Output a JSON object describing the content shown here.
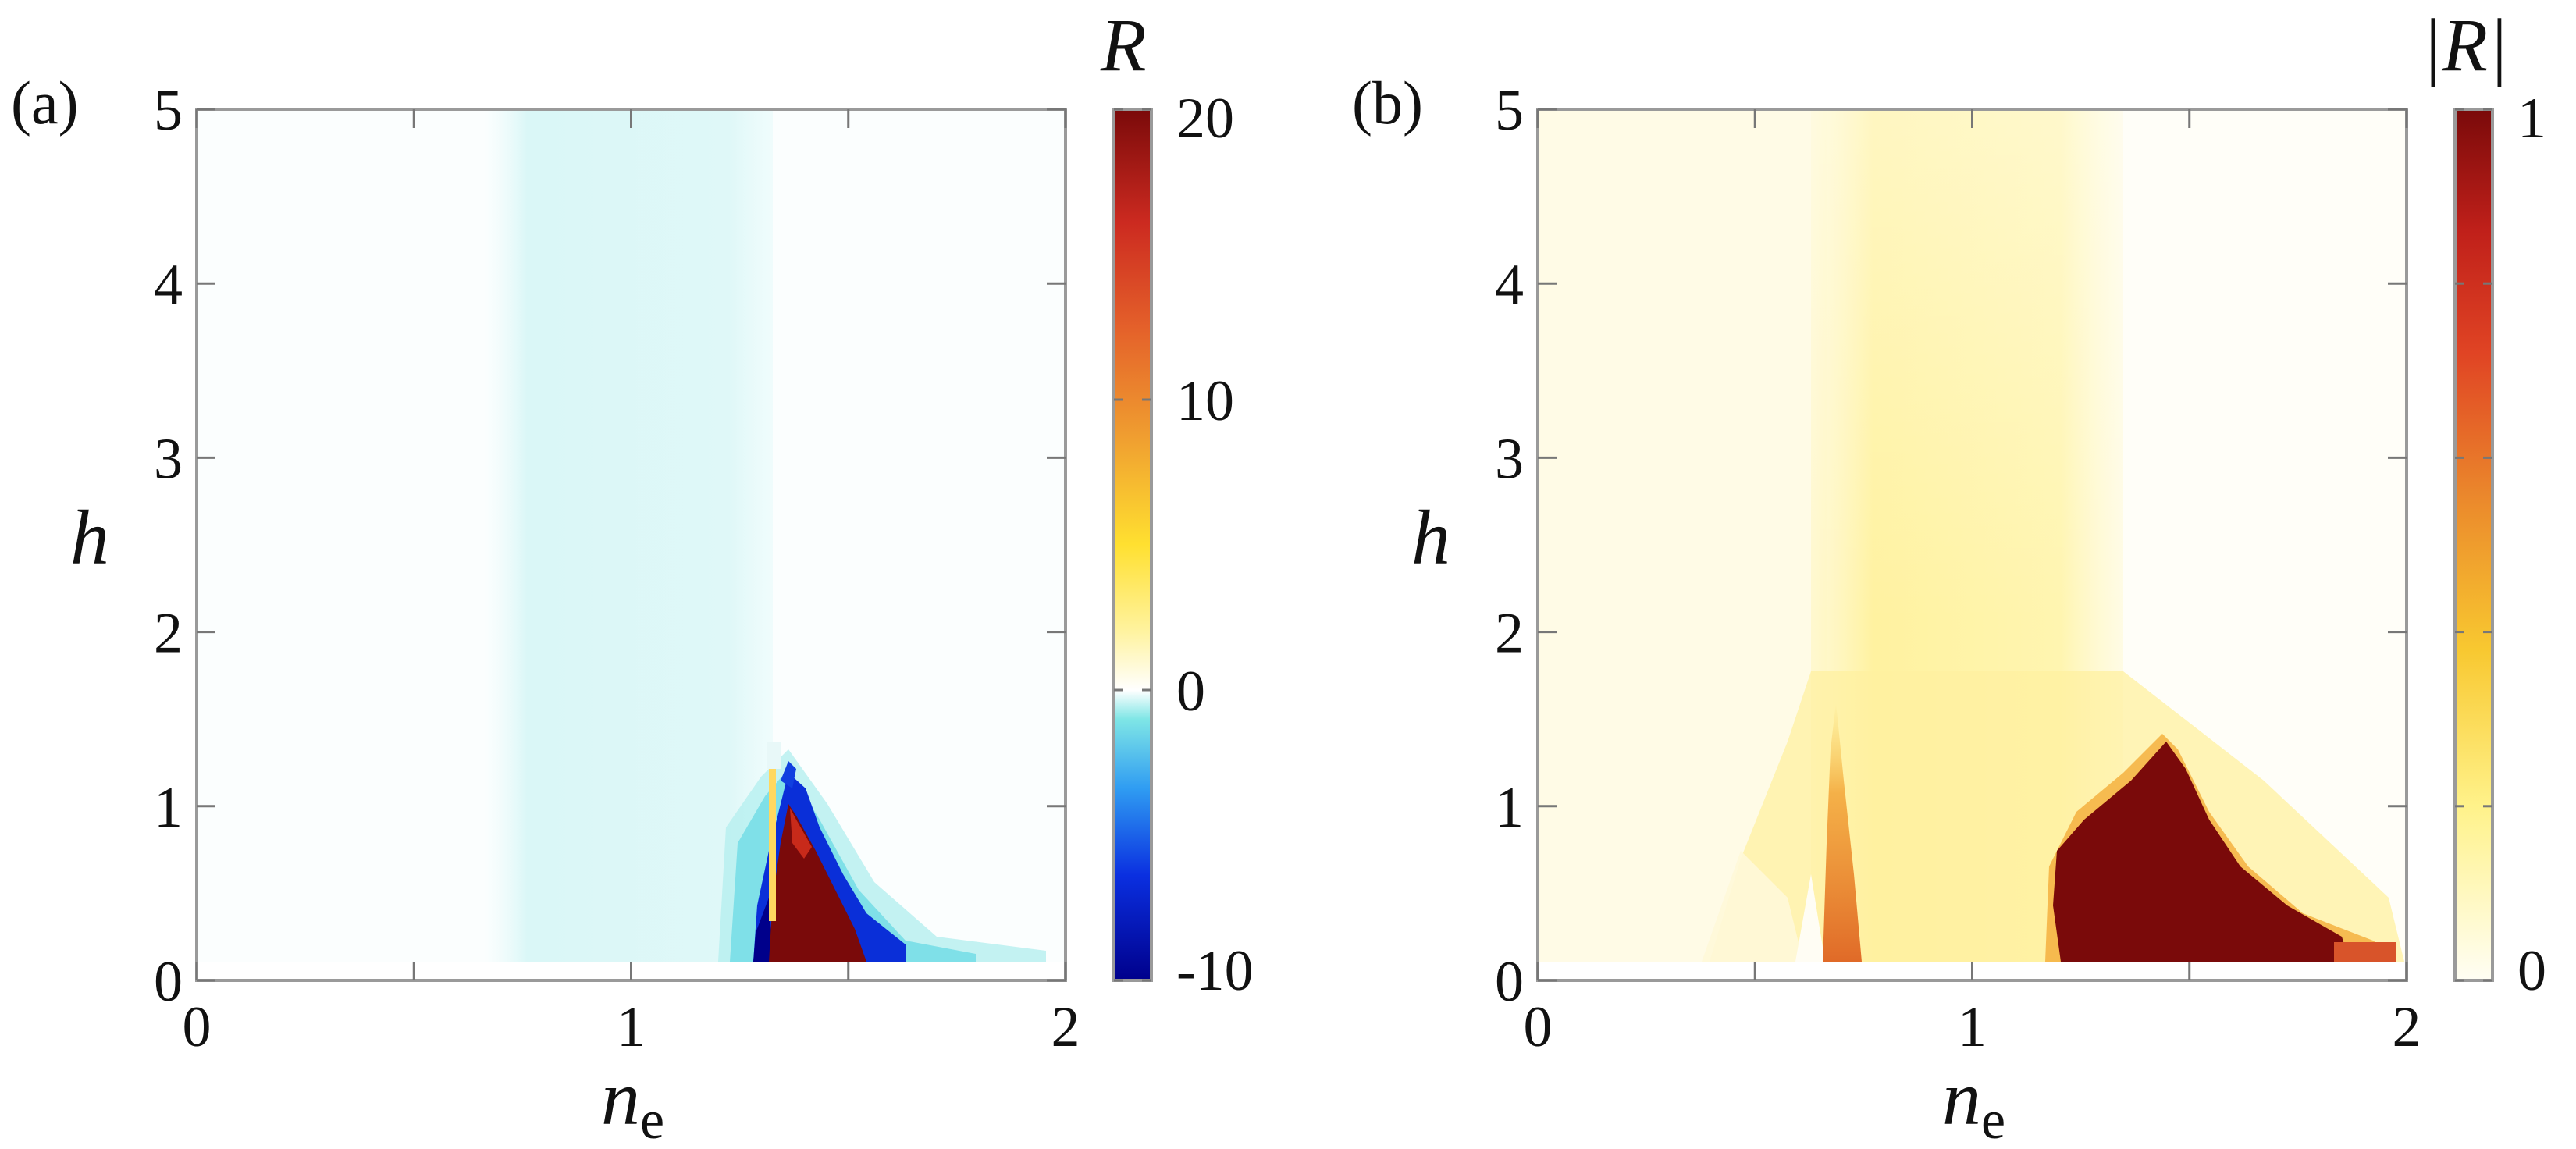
{
  "chart_data": [
    {
      "type": "heatmap",
      "panel_label": "(a)",
      "xlabel_main": "n",
      "xlabel_sub": "e",
      "ylabel": "h",
      "xlim": [
        0,
        2
      ],
      "ylim": [
        0,
        5
      ],
      "xticks": [
        "0",
        "1",
        "2"
      ],
      "yticks": [
        "0",
        "1",
        "2",
        "3",
        "4",
        "5"
      ],
      "colorbar": {
        "title": "R",
        "range": [
          -10,
          20
        ],
        "ticks": [
          "20",
          "10",
          "0",
          "-10"
        ],
        "tick_values": [
          20,
          10,
          0,
          -10
        ],
        "colormap": "diverging blue–cyan–white–yellow–red–darkred"
      },
      "features": [
        {
          "name": "faint negative band",
          "x_range": [
            0.68,
            1.32
          ],
          "y_range": [
            0.1,
            5
          ],
          "value": -0.8
        },
        {
          "name": "positive lobe",
          "x_range": [
            1.34,
            1.5
          ],
          "y_range": [
            0.1,
            1.0
          ],
          "value": 20
        },
        {
          "name": "negative rim",
          "x_range": [
            1.28,
            1.62
          ],
          "y_range": [
            0.1,
            1.2
          ],
          "value": -10
        }
      ]
    },
    {
      "type": "heatmap",
      "panel_label": "(b)",
      "xlabel_main": "n",
      "xlabel_sub": "e",
      "ylabel": "h",
      "xlim": [
        0,
        2
      ],
      "ylim": [
        0,
        5
      ],
      "xticks": [
        "0",
        "1",
        "2"
      ],
      "yticks": [
        "0",
        "1",
        "2",
        "3",
        "4",
        "5"
      ],
      "colorbar": {
        "title": "|R|",
        "range": [
          0,
          1
        ],
        "ticks": [
          "1",
          "0"
        ],
        "tick_values": [
          1,
          0
        ],
        "colormap": "white–yellow–orange–red–darkred"
      },
      "features": [
        {
          "name": "yellow band",
          "x_range": [
            0.65,
            1.32
          ],
          "y_range": [
            0.1,
            5
          ],
          "value": 0.15
        },
        {
          "name": "dark lobe",
          "x_range": [
            1.15,
            1.75
          ],
          "y_range": [
            0.1,
            1.35
          ],
          "value": 1
        },
        {
          "name": "orange streak",
          "x_range": [
            0.66,
            0.72
          ],
          "y_range": [
            0.1,
            1.5
          ],
          "value": 0.45
        }
      ]
    }
  ]
}
